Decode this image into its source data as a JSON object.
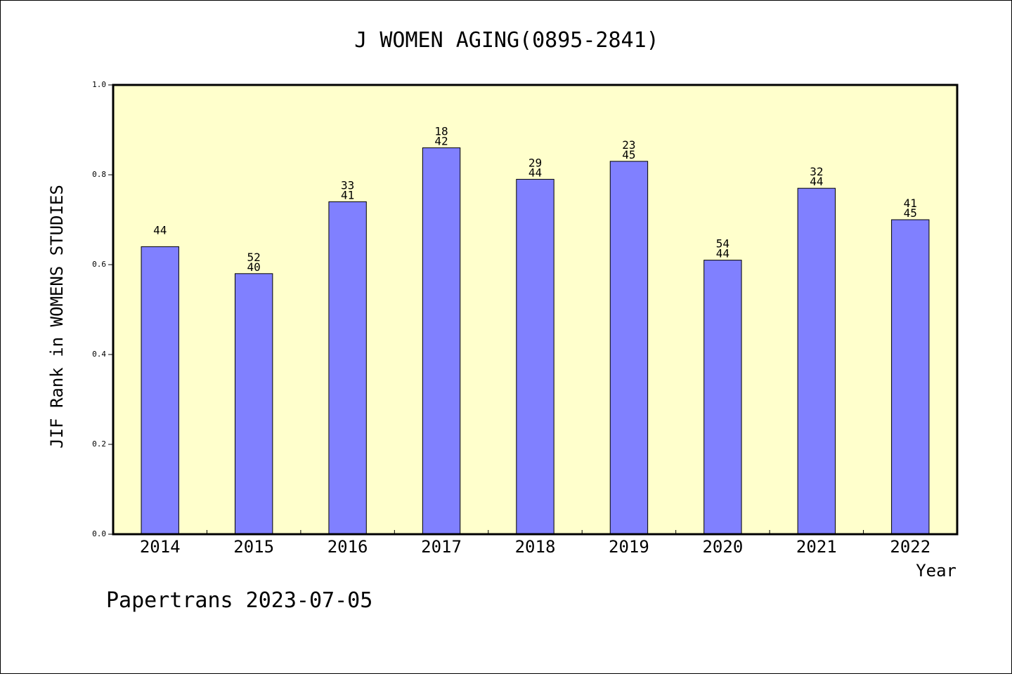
{
  "chart_data": {
    "type": "bar",
    "title": "J WOMEN AGING(0895-2841)",
    "xlabel": "Year",
    "ylabel": "JIF Rank in WOMENS STUDIES",
    "footer": "Papertrans 2023-07-05",
    "ylim": [
      0,
      1
    ],
    "yticks": [
      "0.0",
      "0.2",
      "0.4",
      "0.6",
      "0.8",
      "1.0"
    ],
    "categories": [
      "2014",
      "2015",
      "2016",
      "2017",
      "2018",
      "2019",
      "2020",
      "2021",
      "2022"
    ],
    "values": [
      0.64,
      0.58,
      0.74,
      0.86,
      0.79,
      0.83,
      0.61,
      0.77,
      0.7
    ],
    "labels": [
      [
        "44"
      ],
      [
        "52",
        "40"
      ],
      [
        "33",
        "41"
      ],
      [
        "18",
        "42"
      ],
      [
        "29",
        "44"
      ],
      [
        "23",
        "45"
      ],
      [
        "54",
        "44"
      ],
      [
        "32",
        "44"
      ],
      [
        "41",
        "45"
      ]
    ],
    "grid": false,
    "colors": {
      "bar": "#8080ff",
      "plot_background": "#ffffcc",
      "axis": "#000000"
    }
  }
}
